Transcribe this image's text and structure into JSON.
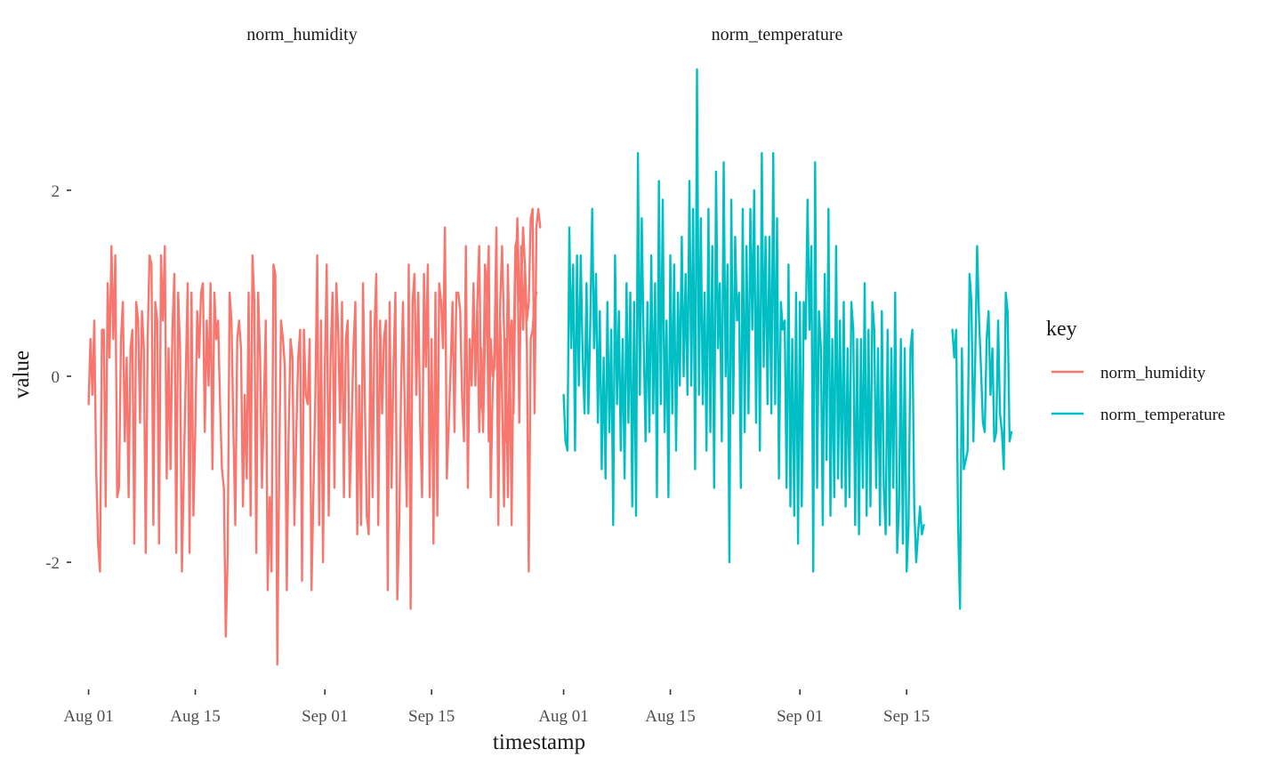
{
  "chart_data": {
    "type": "line",
    "facet_by": "key",
    "facets": [
      "norm_humidity",
      "norm_temperature"
    ],
    "xlabel": "timestamp",
    "ylabel": "value",
    "x_ticks": [
      "Aug 01",
      "Aug 15",
      "Sep 01",
      "Sep 15"
    ],
    "x_range": [
      "2016-07-31",
      "2016-09-27"
    ],
    "y_ticks": [
      2,
      0,
      -2
    ],
    "ylim": [
      -3.3,
      3.3
    ],
    "grid": false,
    "legend": {
      "title": "key",
      "position": "right",
      "entries": [
        {
          "label": "norm_humidity",
          "color": "#F8766D"
        },
        {
          "label": "norm_temperature",
          "color": "#00BFC4"
        }
      ]
    },
    "series": [
      {
        "name": "norm_humidity",
        "color": "#F8766D",
        "segments": [
          {
            "start": "2016-08-01",
            "step_days": 0.25,
            "values": [
              -0.3,
              0.4,
              -0.2,
              0.6,
              -1.0,
              -1.8,
              -2.1,
              0.5,
              0.5,
              -1.4,
              1.0,
              0.2,
              1.4,
              0.4,
              1.3,
              -1.3,
              -1.2,
              0.4,
              0.8,
              -0.7,
              0.2,
              -1.3,
              0.3,
              0.5,
              -1.8,
              0.8,
              0.6,
              -0.5,
              0.7,
              0.3,
              -1.9,
              0.4,
              1.3,
              1.2,
              -1.6,
              0.8,
              0.6,
              -1.8,
              1.3,
              0.6,
              1.4,
              -1.1,
              0.3,
              -1.0,
              0.5,
              1.1,
              -1.9,
              0.9,
              0.3,
              -2.1,
              -1.0,
              0.0,
              1.0,
              -1.9,
              0.9,
              -1.5,
              -0.6,
              0.7,
              0.2,
              0.9,
              1.0,
              -0.6,
              0.6,
              -0.1,
              1.0,
              -1.0,
              0.9,
              0.4,
              0.6,
              -0.3,
              -1.0,
              -1.2,
              -2.8,
              -1.9,
              0.9,
              0.6,
              -0.6,
              -1.6,
              0.4,
              0.6,
              0.3,
              -1.4,
              -0.2,
              -1.1,
              0.9,
              -1.5,
              1.3,
              0.8,
              -1.9,
              0.9,
              0.2,
              -1.2,
              -0.3,
              0.6,
              -2.3,
              -1.3,
              -2.1,
              1.2,
              1.1,
              -3.1,
              -1.0,
              0.6,
              0.4,
              0.1,
              -2.3,
              -0.6,
              0.4,
              0.2,
              -1.6,
              -0.6,
              0.2,
              0.5,
              -2.2,
              0.5,
              -0.2,
              -0.3,
              0.4,
              -2.3,
              -1.2,
              -0.2,
              1.3,
              -1.6,
              0.6,
              -2.0,
              0.1,
              1.2,
              -1.5,
              0.2,
              0.9,
              -1.2,
              1.0,
              0.5,
              -0.5,
              0.8,
              -1.3,
              0.4,
              0.6,
              -1.3,
              -0.6,
              0.3,
              0.8,
              -1.7,
              -0.1,
              -1.6,
              1.0,
              -0.3,
              -1.5,
              -1.7,
              0.7,
              -1.3,
              0.5,
              1.1,
              -1.6,
              0.6,
              -0.4,
              0.4,
              0.6,
              -2.3,
              0.8,
              -1.2,
              0.1,
              0.9,
              -2.4,
              -1.6,
              -0.1,
              0.8,
              -0.5,
              -1.4,
              1.2,
              -2.5,
              0.8,
              1.1,
              -0.2,
              0.9,
              -0.5,
              -1.3,
              1.1,
              0.1,
              1.2,
              -1.3,
              0.4,
              -1.8,
              0.9,
              -1.5,
              1.0,
              0.8,
              0.3,
              1.6,
              -1.1,
              -0.5,
              0.1,
              0.8,
              -0.6,
              0.9,
              0.9,
              0.7,
              -0.2,
              -0.7,
              1.4,
              -1.2,
              0.4,
              -0.1,
              1.0,
              -0.1,
              0.8,
              1.4,
              -0.3,
              -0.4,
              1.2,
              0.9,
              -0.7,
              0.4,
              0.0,
              0.1,
              1.1,
              -1.6,
              0.6,
              -0.2,
              -1.4,
              0.4,
              -1.3,
              0.4,
              -1.6,
              0.3,
              1.4,
              1.5,
              -0.5,
              1.4,
              0.5,
              1.2,
              0.3,
              -2.1,
              0.4,
              0.5,
              0.8,
              0.9
            ]
          },
          {
            "start": "2016-09-21",
            "step_days": 0.25,
            "values": [
              0.7,
              -0.6,
              0.3,
              -0.6,
              0.4,
              0.8,
              1.4,
              -1.3,
              -0.2,
              0.3,
              1.6,
              -0.8,
              0.8,
              1.4,
              0.5,
              -0.7,
              1.2,
              0.2,
              0.6,
              -0.4,
              1.0,
              1.7,
              0.8,
              0.9,
              1.6,
              1.2,
              0.6,
              0.8,
              1.7,
              1.8,
              -0.4,
              1.6,
              1.8,
              1.6
            ]
          }
        ]
      },
      {
        "name": "norm_temperature",
        "color": "#00BFC4",
        "segments": [
          {
            "start": "2016-08-01",
            "step_days": 0.25,
            "values": [
              -0.2,
              -0.7,
              -0.8,
              1.6,
              0.3,
              1.2,
              -0.8,
              1.3,
              -0.1,
              1.3,
              0.2,
              -0.4,
              1.0,
              -0.4,
              0.6,
              1.8,
              0.3,
              1.1,
              -0.5,
              0.7,
              -1.0,
              0.2,
              -1.1,
              0.8,
              -0.6,
              0.5,
              -1.6,
              1.3,
              -0.3,
              0.7,
              -0.8,
              0.4,
              -1.1,
              1.0,
              -0.5,
              0.9,
              -1.4,
              0.8,
              -1.5,
              2.4,
              -0.2,
              1.7,
              0.4,
              -0.7,
              0.8,
              -0.6,
              1.3,
              -0.4,
              1.0,
              -1.3,
              2.1,
              -0.3,
              1.9,
              -0.6,
              0.6,
              -1.3,
              1.3,
              -0.4,
              1.2,
              -0.8,
              0.9,
              -0.1,
              1.5,
              0.0,
              1.1,
              -0.2,
              2.1,
              -0.1,
              1.8,
              -1.0,
              3.3,
              -0.2,
              1.7,
              -0.3,
              0.9,
              -0.8,
              1.8,
              -0.6,
              1.4,
              -1.2,
              2.2,
              0.3,
              1.0,
              -0.7,
              2.3,
              0.0,
              1.2,
              -2.0,
              1.9,
              -0.4,
              1.5,
              0.6,
              0.9,
              -1.2,
              1.8,
              -0.6,
              1.4,
              -0.4,
              1.8,
              0.5,
              2.0,
              -0.5,
              1.4,
              -0.8,
              2.4,
              0.1,
              1.5,
              -0.3,
              1.5,
              -0.4,
              2.4,
              -0.3,
              1.7,
              -1.1,
              0.8,
              0.5,
              0.6,
              -1.2,
              1.2,
              -1.4,
              0.4,
              -1.5,
              0.9,
              -1.8,
              0.8,
              -1.4,
              0.8,
              0.4,
              1.9,
              0.5,
              1.4,
              -2.1,
              2.3,
              -1.2,
              0.7,
              0.3,
              -1.6,
              1.1,
              -0.9,
              1.8,
              -1.5,
              0.4,
              -1.3,
              1.4,
              -1.1,
              0.6,
              -1.2,
              0.8,
              -1.4,
              0.3,
              -1.3,
              0.8,
              0.5,
              -1.6,
              0.4,
              -1.7,
              0.4,
              -1.2,
              1.0,
              -1.5,
              0.5,
              -1.4,
              0.8,
              0.5,
              -1.2,
              0.3,
              -1.6,
              0.7,
              -1.2,
              -1.7,
              0.5,
              -1.6,
              0.3,
              -1.2,
              0.9,
              -1.9,
              -1.4,
              0.4,
              -1.8,
              0.3,
              -2.1,
              -1.6,
              0.3,
              0.5,
              -1.4,
              -2.0,
              -1.7,
              -1.4,
              -1.7,
              -1.6
            ]
          },
          {
            "start": "2016-09-21",
            "step_days": 0.25,
            "values": [
              0.5,
              0.2,
              0.5,
              -1.6,
              -2.5,
              0.3,
              -1.0,
              -0.9,
              -0.8,
              1.1,
              0.8,
              -0.7,
              0.2,
              1.4,
              0.6,
              0.1,
              -0.5,
              -0.6,
              0.4,
              0.7,
              -0.2,
              0.3,
              -0.7,
              -0.6,
              0.6,
              -0.4,
              -0.6,
              -1.0,
              0.9,
              0.7,
              -0.7,
              -0.6
            ]
          }
        ]
      }
    ]
  }
}
